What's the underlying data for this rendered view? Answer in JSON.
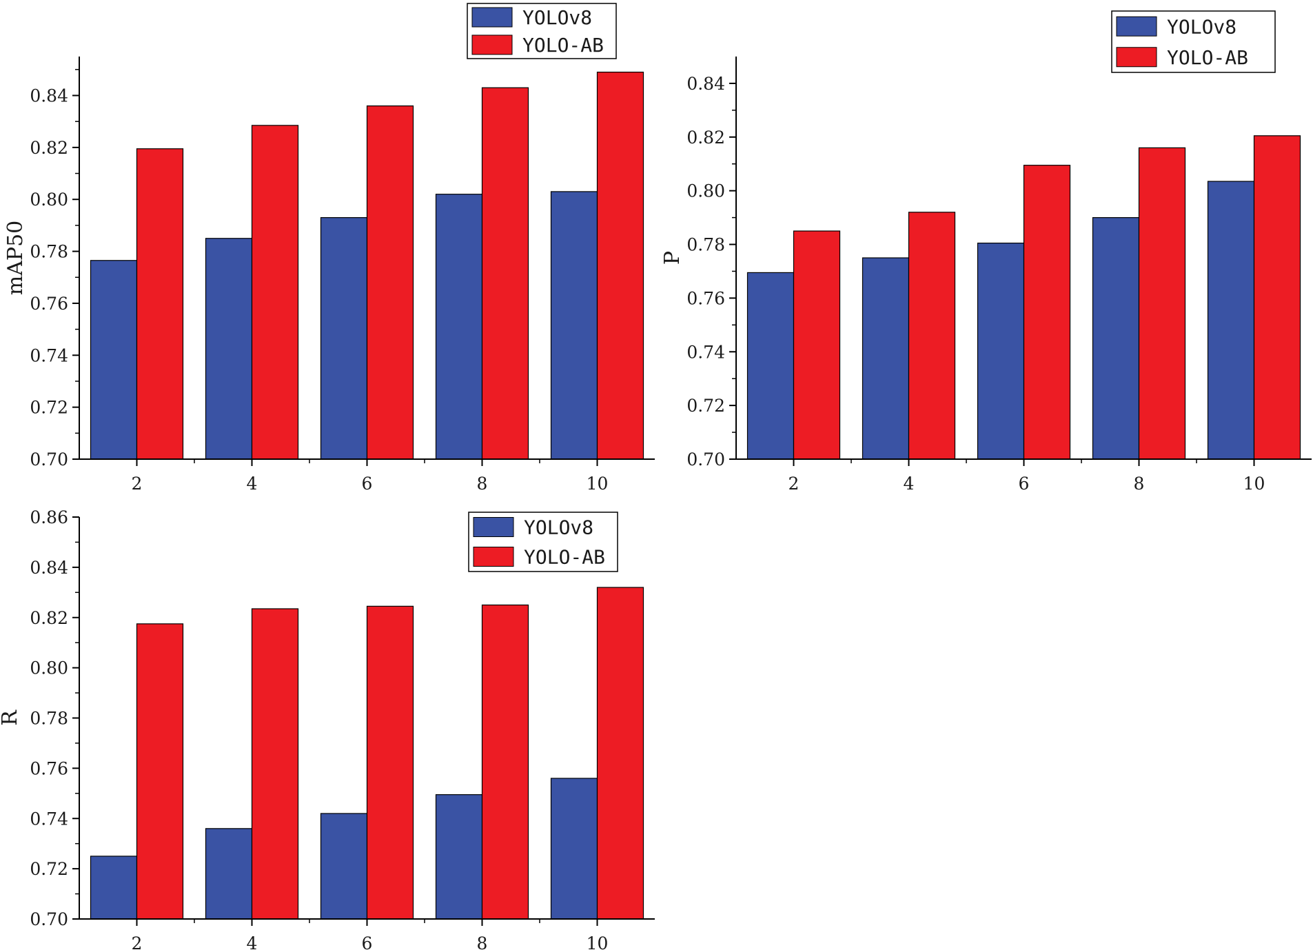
{
  "colors": {
    "series_a": "#3a53a4",
    "series_b": "#ed1c24",
    "axis": "#000000"
  },
  "chart_data": [
    {
      "type": "bar",
      "ylabel": "mAP50",
      "xlabel": "",
      "categories": [
        "2",
        "4",
        "6",
        "8",
        "10"
      ],
      "ylim": [
        0.7,
        0.855
      ],
      "yticks": [
        "0.70",
        "0.72",
        "0.74",
        "0.76",
        "0.78",
        "0.80",
        "0.82",
        "0.84"
      ],
      "legend_position": "top-center",
      "series": [
        {
          "name": "YOLOv8",
          "values": [
            0.7765,
            0.785,
            0.793,
            0.802,
            0.803
          ]
        },
        {
          "name": "YOLO-AB",
          "values": [
            0.8195,
            0.8285,
            0.836,
            0.843,
            0.849
          ]
        }
      ]
    },
    {
      "type": "bar",
      "ylabel": "P",
      "xlabel": "",
      "categories": [
        "2",
        "4",
        "6",
        "8",
        "10"
      ],
      "ylim": [
        0.7,
        0.85
      ],
      "yticks": [
        "0.70",
        "0.72",
        "0.74",
        "0.76",
        "0.78",
        "0.80",
        "0.82",
        "0.84"
      ],
      "legend_position": "top-right",
      "series": [
        {
          "name": "YOLOv8",
          "values": [
            0.7695,
            0.775,
            0.7805,
            0.79,
            0.8035
          ]
        },
        {
          "name": "YOLO-AB",
          "values": [
            0.785,
            0.792,
            0.8095,
            0.816,
            0.8205
          ]
        }
      ]
    },
    {
      "type": "bar",
      "ylabel": "R",
      "xlabel": "",
      "categories": [
        "2",
        "4",
        "6",
        "8",
        "10"
      ],
      "ylim": [
        0.7,
        0.86
      ],
      "yticks": [
        "0.70",
        "0.72",
        "0.74",
        "0.76",
        "0.78",
        "0.80",
        "0.82",
        "0.84",
        "0.86"
      ],
      "legend_position": "top-center",
      "series": [
        {
          "name": "YOLOv8",
          "values": [
            0.725,
            0.736,
            0.742,
            0.7495,
            0.756
          ]
        },
        {
          "name": "YOLO-AB",
          "values": [
            0.8175,
            0.8235,
            0.8245,
            0.825,
            0.832
          ]
        }
      ]
    }
  ]
}
